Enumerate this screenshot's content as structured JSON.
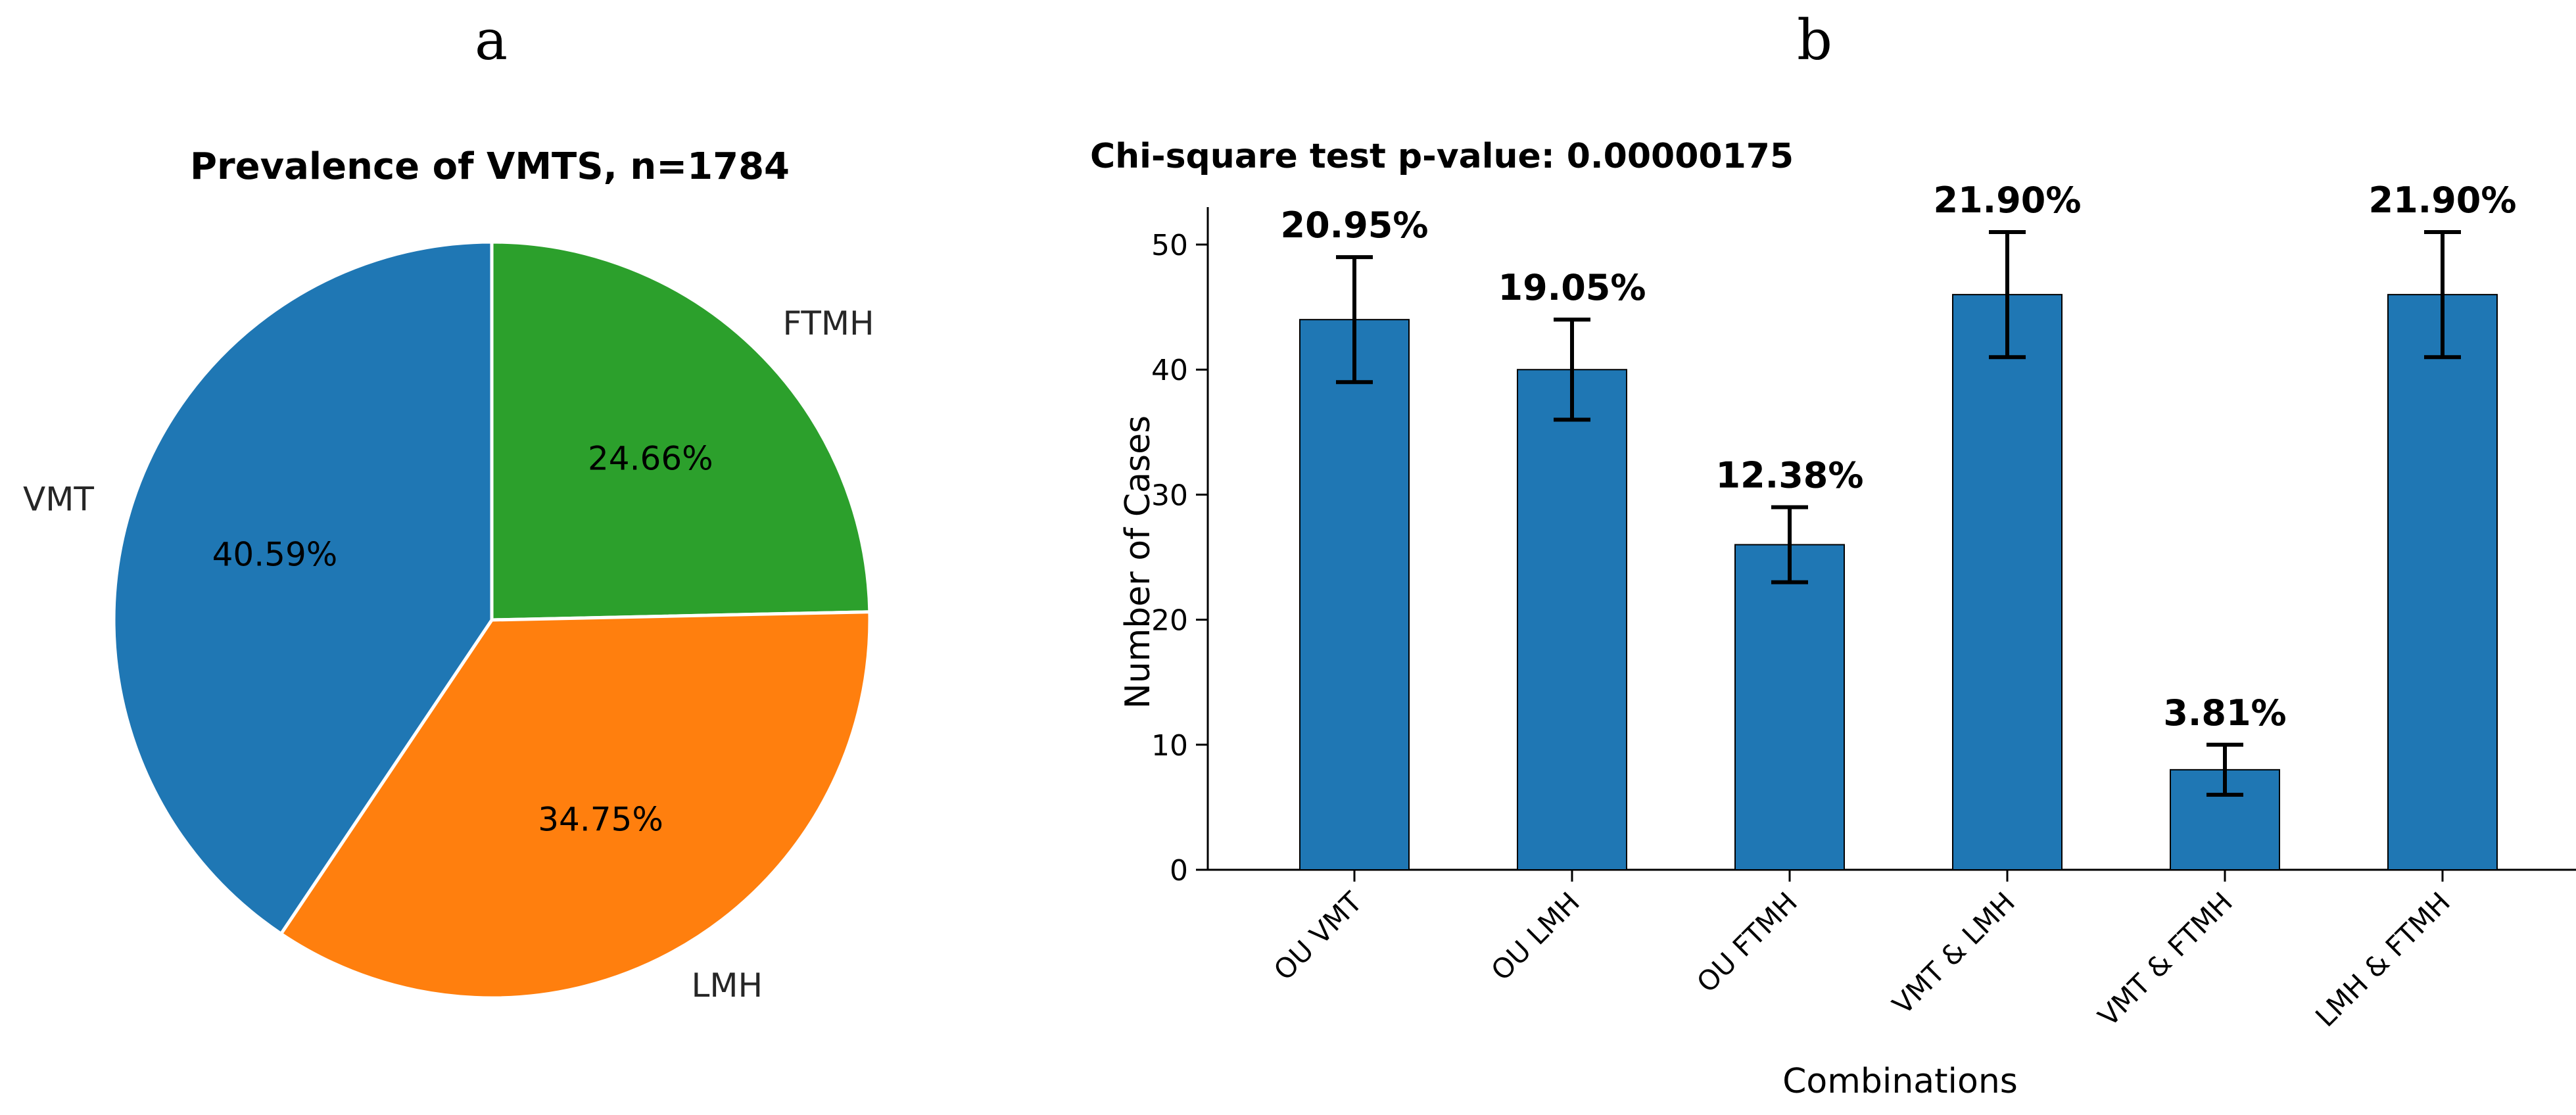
{
  "panel_a": {
    "label": "a"
  },
  "panel_b": {
    "label": "b"
  },
  "chart_data": [
    {
      "type": "pie",
      "title": "Prevalence of VMTS, n=1784",
      "slices": [
        {
          "label": "FTMH",
          "value": 24.66,
          "pct_label": "24.66%",
          "color": "#2ca02c"
        },
        {
          "label": "LMH",
          "value": 34.75,
          "pct_label": "34.75%",
          "color": "#ff7f0e"
        },
        {
          "label": "VMT",
          "value": 40.59,
          "pct_label": "40.59%",
          "color": "#1f77b4"
        }
      ],
      "start_angle_deg": 90,
      "direction": "clockwise"
    },
    {
      "type": "bar",
      "title": "Chi-square test p-value: 0.00000175",
      "xlabel": "Combinations",
      "ylabel": "Number of Cases",
      "ylim": [
        0,
        53
      ],
      "yticks": [
        0,
        10,
        20,
        30,
        40,
        50
      ],
      "categories": [
        "OU VMT",
        "OU LMH",
        "OU FTMH",
        "VMT & LMH",
        "VMT & FTMH",
        "LMH & FTMH"
      ],
      "values": [
        44,
        40,
        26,
        46,
        8,
        46
      ],
      "error_low": [
        39,
        36,
        23,
        41,
        6,
        41
      ],
      "error_high": [
        49,
        44,
        29,
        51,
        10,
        51
      ],
      "bar_labels": [
        "20.95%",
        "19.05%",
        "12.38%",
        "21.90%",
        "3.81%",
        "21.90%"
      ],
      "color": "#1f77b4"
    }
  ]
}
